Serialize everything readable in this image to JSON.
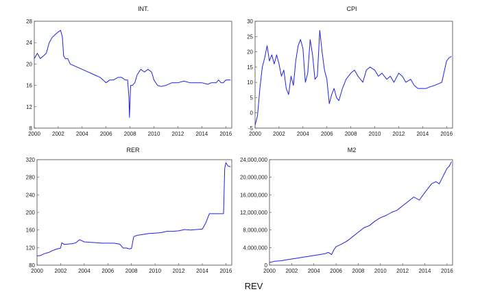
{
  "figure": {
    "caption": "REV"
  },
  "chart_data": [
    {
      "type": "line",
      "title": "INT.",
      "xlim": [
        2000,
        2016.5
      ],
      "ylim": [
        8,
        28
      ],
      "x_ticks": [
        "2000",
        "2002",
        "2004",
        "2006",
        "2008",
        "2010",
        "2012",
        "2014",
        "2016"
      ],
      "y_ticks": [
        "8",
        "12",
        "16",
        "20",
        "24",
        "28"
      ],
      "grid": false,
      "series": [
        {
          "color": "#1e1ee6",
          "x": [
            2000,
            2000.25,
            2000.5,
            2000.75,
            2001,
            2001.25,
            2001.5,
            2001.75,
            2002,
            2002.2,
            2002.35,
            2002.45,
            2002.6,
            2002.8,
            2003,
            2003.5,
            2004,
            2004.5,
            2005,
            2005.5,
            2006,
            2006.3,
            2006.6,
            2007,
            2007.3,
            2007.6,
            2007.8,
            2007.9,
            2007.95,
            2008.05,
            2008.2,
            2008.4,
            2008.6,
            2008.9,
            2009.2,
            2009.5,
            2009.8,
            2010,
            2010.3,
            2010.6,
            2011,
            2011.5,
            2012,
            2012.5,
            2013,
            2013.5,
            2014,
            2014.5,
            2014.8,
            2015,
            2015.2,
            2015.4,
            2015.6,
            2015.8,
            2016,
            2016.2,
            2016.4
          ],
          "y": [
            21,
            22,
            21,
            21.5,
            22,
            24,
            25,
            25.5,
            26,
            26.3,
            25,
            21.5,
            21,
            21,
            20,
            19.5,
            19,
            18.5,
            18,
            17.5,
            16.5,
            17,
            17,
            17.5,
            17.5,
            17,
            17,
            14,
            10,
            16,
            16,
            16.5,
            18,
            19,
            18.5,
            19,
            18.5,
            17,
            16,
            15.8,
            16,
            16.5,
            16.5,
            16.8,
            16.5,
            16.5,
            16.5,
            16.2,
            16.5,
            16.5,
            16.5,
            17,
            16.5,
            16.5,
            17,
            17,
            17
          ]
        }
      ]
    },
    {
      "type": "line",
      "title": "CPI",
      "xlim": [
        2000,
        2016.5
      ],
      "ylim": [
        -5,
        30
      ],
      "x_ticks": [
        "2000",
        "2002",
        "2004",
        "2006",
        "2008",
        "2010",
        "2012",
        "2014",
        "2016"
      ],
      "y_ticks": [
        "-5",
        "0",
        "5",
        "10",
        "15",
        "20",
        "25",
        "30"
      ],
      "grid": false,
      "series": [
        {
          "color": "#1e1ee6",
          "x": [
            2000,
            2000.2,
            2000.4,
            2000.6,
            2000.8,
            2001,
            2001.2,
            2001.4,
            2001.6,
            2001.8,
            2002,
            2002.2,
            2002.4,
            2002.6,
            2002.8,
            2003,
            2003.2,
            2003.4,
            2003.6,
            2003.8,
            2004,
            2004.2,
            2004.4,
            2004.6,
            2004.8,
            2005,
            2005.2,
            2005.4,
            2005.6,
            2005.8,
            2006,
            2006.2,
            2006.4,
            2006.6,
            2006.8,
            2007,
            2007.3,
            2007.6,
            2008,
            2008.3,
            2008.6,
            2009,
            2009.3,
            2009.6,
            2010,
            2010.3,
            2010.6,
            2011,
            2011.3,
            2011.6,
            2012,
            2012.3,
            2012.6,
            2013,
            2013.3,
            2013.6,
            2014,
            2014.3,
            2014.6,
            2015,
            2015.3,
            2015.6,
            2016,
            2016.2,
            2016.4
          ],
          "y": [
            -4,
            -1,
            8,
            15,
            18,
            22,
            17,
            19,
            16,
            19,
            16,
            12,
            14,
            8,
            6,
            12,
            9,
            17,
            22,
            24,
            21,
            10,
            13,
            24,
            19,
            11,
            12,
            27,
            20,
            14,
            11,
            3,
            6,
            8,
            5,
            4,
            8,
            11,
            13,
            14,
            12,
            10,
            14,
            15,
            14,
            12,
            13,
            11,
            12,
            10,
            13,
            12,
            10,
            11,
            9,
            8,
            8,
            8,
            8.5,
            9,
            9.5,
            10,
            17,
            18,
            18.5
          ]
        }
      ]
    },
    {
      "type": "line",
      "title": "RER",
      "xlim": [
        2000,
        2016.5
      ],
      "ylim": [
        80,
        320
      ],
      "x_ticks": [
        "2000",
        "2002",
        "2004",
        "2006",
        "2008",
        "2010",
        "2012",
        "2014",
        "2016"
      ],
      "y_ticks": [
        "80",
        "120",
        "160",
        "200",
        "240",
        "280",
        "320"
      ],
      "grid": false,
      "series": [
        {
          "color": "#1e1ee6",
          "x": [
            2000,
            2000.3,
            2000.6,
            2001,
            2001.3,
            2001.6,
            2002,
            2002.1,
            2002.3,
            2002.6,
            2003,
            2003.3,
            2003.6,
            2004,
            2004.5,
            2005,
            2005.5,
            2006,
            2006.5,
            2007,
            2007.3,
            2007.6,
            2007.8,
            2008,
            2008.2,
            2008.5,
            2009,
            2009.5,
            2010,
            2010.5,
            2011,
            2011.5,
            2012,
            2012.5,
            2013,
            2013.5,
            2014,
            2014.3,
            2014.6,
            2014.9,
            2015.2,
            2015.5,
            2015.8,
            2015.9,
            2016,
            2016.2,
            2016.4
          ],
          "y": [
            101,
            102,
            106,
            109,
            113,
            116,
            119,
            131,
            127,
            128,
            129,
            131,
            138,
            133,
            132,
            131,
            130,
            130,
            130,
            128,
            119,
            119,
            117,
            118,
            145,
            148,
            150,
            152,
            153,
            154,
            157,
            157,
            158,
            161,
            160,
            161,
            162,
            176,
            197,
            197,
            197,
            197,
            197,
            300,
            313,
            305,
            304
          ]
        }
      ]
    },
    {
      "type": "line",
      "title": "M2",
      "xlim": [
        2000,
        2016.5
      ],
      "ylim": [
        0,
        24000000
      ],
      "x_ticks": [
        "2000",
        "2002",
        "2004",
        "2006",
        "2008",
        "2010",
        "2012",
        "2014",
        "2016"
      ],
      "y_ticks": [
        "0",
        "4,000,000",
        "8,000,000",
        "12,000,000",
        "16,000,000",
        "20,000,000",
        "24,000,000"
      ],
      "grid": false,
      "series": [
        {
          "color": "#1e1ee6",
          "x": [
            2000,
            2000.5,
            2001,
            2001.5,
            2002,
            2002.5,
            2003,
            2003.5,
            2004,
            2004.5,
            2005,
            2005.3,
            2005.6,
            2005.8,
            2006,
            2006.5,
            2007,
            2007.5,
            2008,
            2008.5,
            2009,
            2009.5,
            2010,
            2010.5,
            2011,
            2011.5,
            2012,
            2012.5,
            2013,
            2013.5,
            2014,
            2014.3,
            2014.6,
            2015,
            2015.3,
            2015.6,
            2016,
            2016.2,
            2016.4
          ],
          "y": [
            600000,
            900000,
            1000000,
            1200000,
            1400000,
            1600000,
            1800000,
            2000000,
            2200000,
            2400000,
            2600000,
            2900000,
            2400000,
            3500000,
            4200000,
            4800000,
            5500000,
            6500000,
            7500000,
            8500000,
            9000000,
            10000000,
            10800000,
            11300000,
            12000000,
            12500000,
            13500000,
            14500000,
            15500000,
            14800000,
            16500000,
            17500000,
            18500000,
            19000000,
            18500000,
            20000000,
            22000000,
            22500000,
            23500000
          ]
        }
      ]
    }
  ]
}
